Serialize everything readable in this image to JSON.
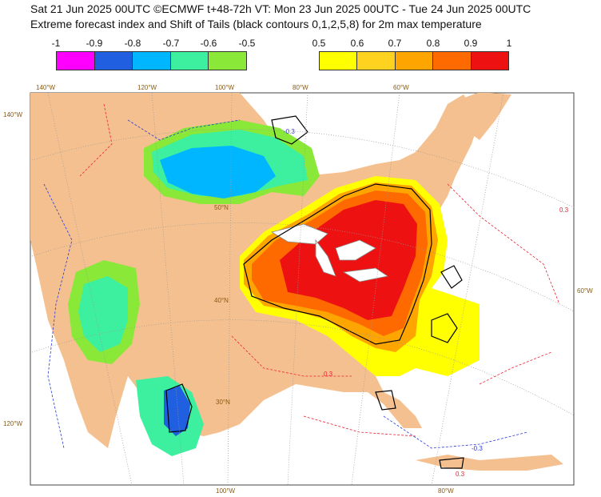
{
  "header": {
    "line1": "Sat 21 Jun 2025 00UTC ©ECMWF t+48-72h  VT: Mon 23 Jun 2025 00UTC - Tue 24 Jun 2025 00UTC",
    "line2": "Extreme forecast index and Shift of Tails (black contours 0,1,2,5,8) for 2m max temperature"
  },
  "legend_cold": {
    "ticks": [
      "-1",
      "-0.9",
      "-0.8",
      "-0.7",
      "-0.6",
      "-0.5"
    ],
    "colors": [
      "#ff00ff",
      "#1f5fe0",
      "#00b7ff",
      "#3cf0a0",
      "#8ae838"
    ]
  },
  "legend_hot": {
    "ticks": [
      "0.5",
      "0.6",
      "0.7",
      "0.8",
      "0.9",
      "1"
    ],
    "colors": [
      "#ffff00",
      "#ffd21f",
      "#ffa500",
      "#ff6a00",
      "#ee1111"
    ]
  },
  "map": {
    "land_color": "#f5c08f",
    "ocean_color": "#ffffff",
    "lon_labels_top": [
      "140°W",
      "120°W",
      "100°W",
      "80°W",
      "60°W"
    ],
    "lon_labels_bottom": [
      "100°W",
      "80°W"
    ],
    "lon_labels_left": [
      "140°W",
      "120°W"
    ],
    "lon_labels_right": [
      "60°W"
    ],
    "lat_labels": [
      "50°N",
      "40°N",
      "30°N"
    ],
    "contour_labels": [
      "-0.3",
      "0.3"
    ]
  }
}
